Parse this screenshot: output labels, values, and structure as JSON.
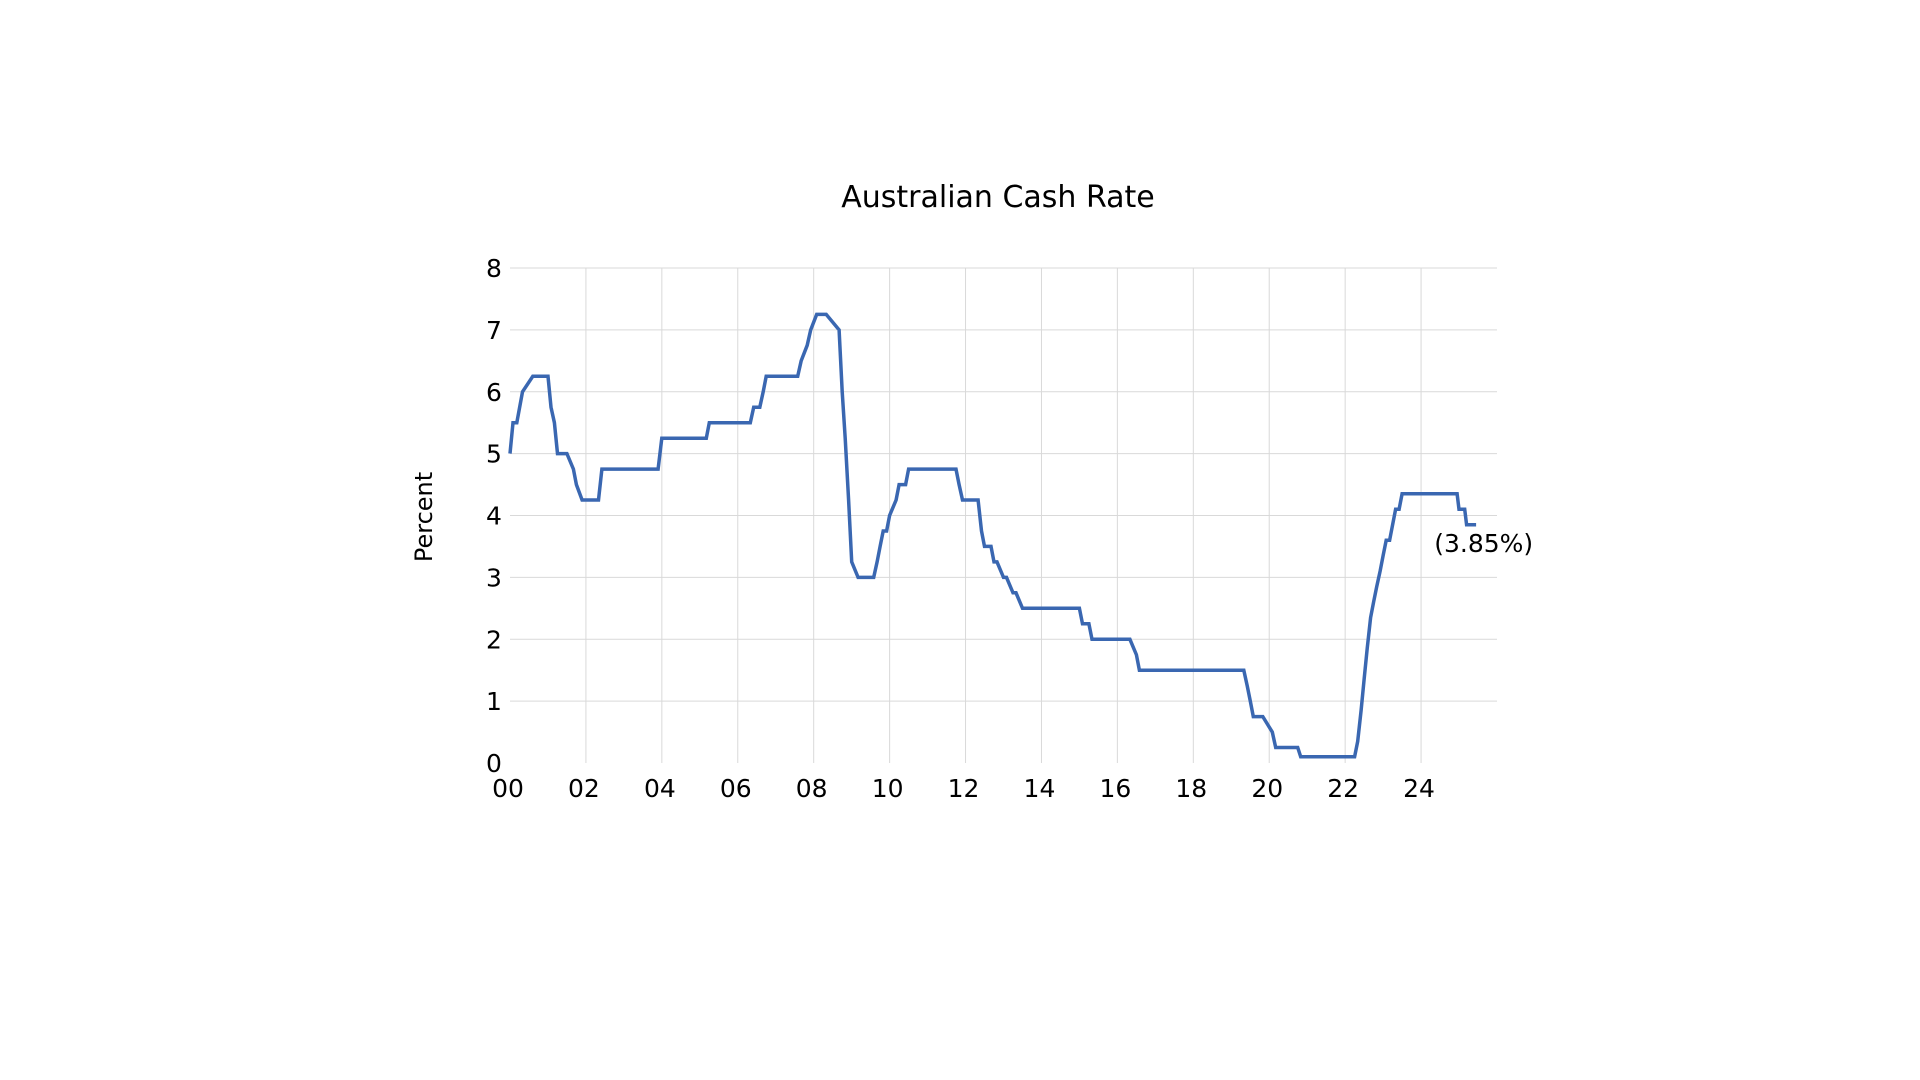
{
  "chart_data": {
    "type": "line",
    "title": "Australian Cash Rate",
    "xlabel": "",
    "ylabel": "Percent",
    "xlim": [
      2000,
      2026
    ],
    "ylim": [
      0,
      8
    ],
    "x_ticks": [
      {
        "value": 2000,
        "label": "00"
      },
      {
        "value": 2002,
        "label": "02"
      },
      {
        "value": 2004,
        "label": "04"
      },
      {
        "value": 2006,
        "label": "06"
      },
      {
        "value": 2008,
        "label": "08"
      },
      {
        "value": 2010,
        "label": "10"
      },
      {
        "value": 2012,
        "label": "12"
      },
      {
        "value": 2014,
        "label": "14"
      },
      {
        "value": 2016,
        "label": "16"
      },
      {
        "value": 2018,
        "label": "18"
      },
      {
        "value": 2020,
        "label": "20"
      },
      {
        "value": 2022,
        "label": "22"
      },
      {
        "value": 2024,
        "label": "24"
      }
    ],
    "y_ticks": [
      0,
      1,
      2,
      3,
      4,
      5,
      6,
      7,
      8
    ],
    "grid": true,
    "annotation": {
      "text": "(3.85%)",
      "x": 2025.4,
      "y": 3.85
    },
    "series": [
      {
        "color": "#3a67b1",
        "x": [
          2000.0,
          2000.08,
          2000.18,
          2000.33,
          2000.6,
          2001.0,
          2001.08,
          2001.17,
          2001.25,
          2001.33,
          2001.42,
          2001.5,
          2001.67,
          2001.75,
          2001.9,
          2002.33,
          2002.42,
          2003.5,
          2003.9,
          2004.0,
          2005.17,
          2005.25,
          2006.33,
          2006.42,
          2006.58,
          2006.67,
          2006.75,
          2007.0,
          2007.58,
          2007.67,
          2007.83,
          2007.92,
          2008.08,
          2008.17,
          2008.33,
          2008.67,
          2008.75,
          2008.83,
          2008.92,
          2009.0,
          2009.17,
          2009.25,
          2009.58,
          2009.67,
          2009.75,
          2009.83,
          2009.92,
          2010.0,
          2010.17,
          2010.25,
          2010.42,
          2010.5,
          2010.83,
          2010.92,
          2011.75,
          2011.83,
          2011.92,
          2012.0,
          2012.33,
          2012.42,
          2012.5,
          2012.67,
          2012.75,
          2012.83,
          2013.0,
          2013.08,
          2013.25,
          2013.33,
          2013.5,
          2013.58,
          2013.67,
          2015.0,
          2015.08,
          2015.25,
          2015.33,
          2016.25,
          2016.33,
          2016.5,
          2016.58,
          2019.33,
          2019.42,
          2019.5,
          2019.58,
          2019.75,
          2019.83,
          2020.08,
          2020.17,
          2020.75,
          2020.83,
          2022.25,
          2022.33,
          2022.42,
          2022.5,
          2022.58,
          2022.67,
          2022.75,
          2022.83,
          2022.92,
          2023.0,
          2023.08,
          2023.17,
          2023.25,
          2023.33,
          2023.42,
          2023.5,
          2023.8,
          2023.85,
          2024.95,
          2025.0,
          2025.15,
          2025.2,
          2025.35,
          2025.45
        ],
        "y": [
          5.0,
          5.5,
          5.5,
          6.0,
          6.25,
          6.25,
          5.75,
          5.5,
          5.0,
          5.0,
          5.0,
          5.0,
          4.75,
          4.5,
          4.25,
          4.25,
          4.75,
          4.75,
          4.75,
          5.25,
          5.25,
          5.5,
          5.5,
          5.75,
          5.75,
          6.0,
          6.25,
          6.25,
          6.25,
          6.5,
          6.75,
          7.0,
          7.25,
          7.25,
          7.25,
          7.0,
          6.0,
          5.25,
          4.25,
          3.25,
          3.0,
          3.0,
          3.0,
          3.25,
          3.5,
          3.75,
          3.75,
          4.0,
          4.25,
          4.5,
          4.5,
          4.75,
          4.75,
          4.75,
          4.75,
          4.5,
          4.25,
          4.25,
          4.25,
          3.75,
          3.5,
          3.5,
          3.25,
          3.25,
          3.0,
          3.0,
          2.75,
          2.75,
          2.5,
          2.5,
          2.5,
          2.5,
          2.25,
          2.25,
          2.0,
          2.0,
          2.0,
          1.75,
          1.5,
          1.5,
          1.25,
          1.0,
          0.75,
          0.75,
          0.75,
          0.5,
          0.25,
          0.25,
          0.1,
          0.1,
          0.35,
          0.85,
          1.35,
          1.85,
          2.35,
          2.6,
          2.85,
          3.1,
          3.35,
          3.6,
          3.6,
          3.85,
          4.1,
          4.1,
          4.35,
          4.35,
          4.35,
          4.35,
          4.1,
          4.1,
          3.85,
          3.85,
          3.85
        ]
      }
    ]
  }
}
